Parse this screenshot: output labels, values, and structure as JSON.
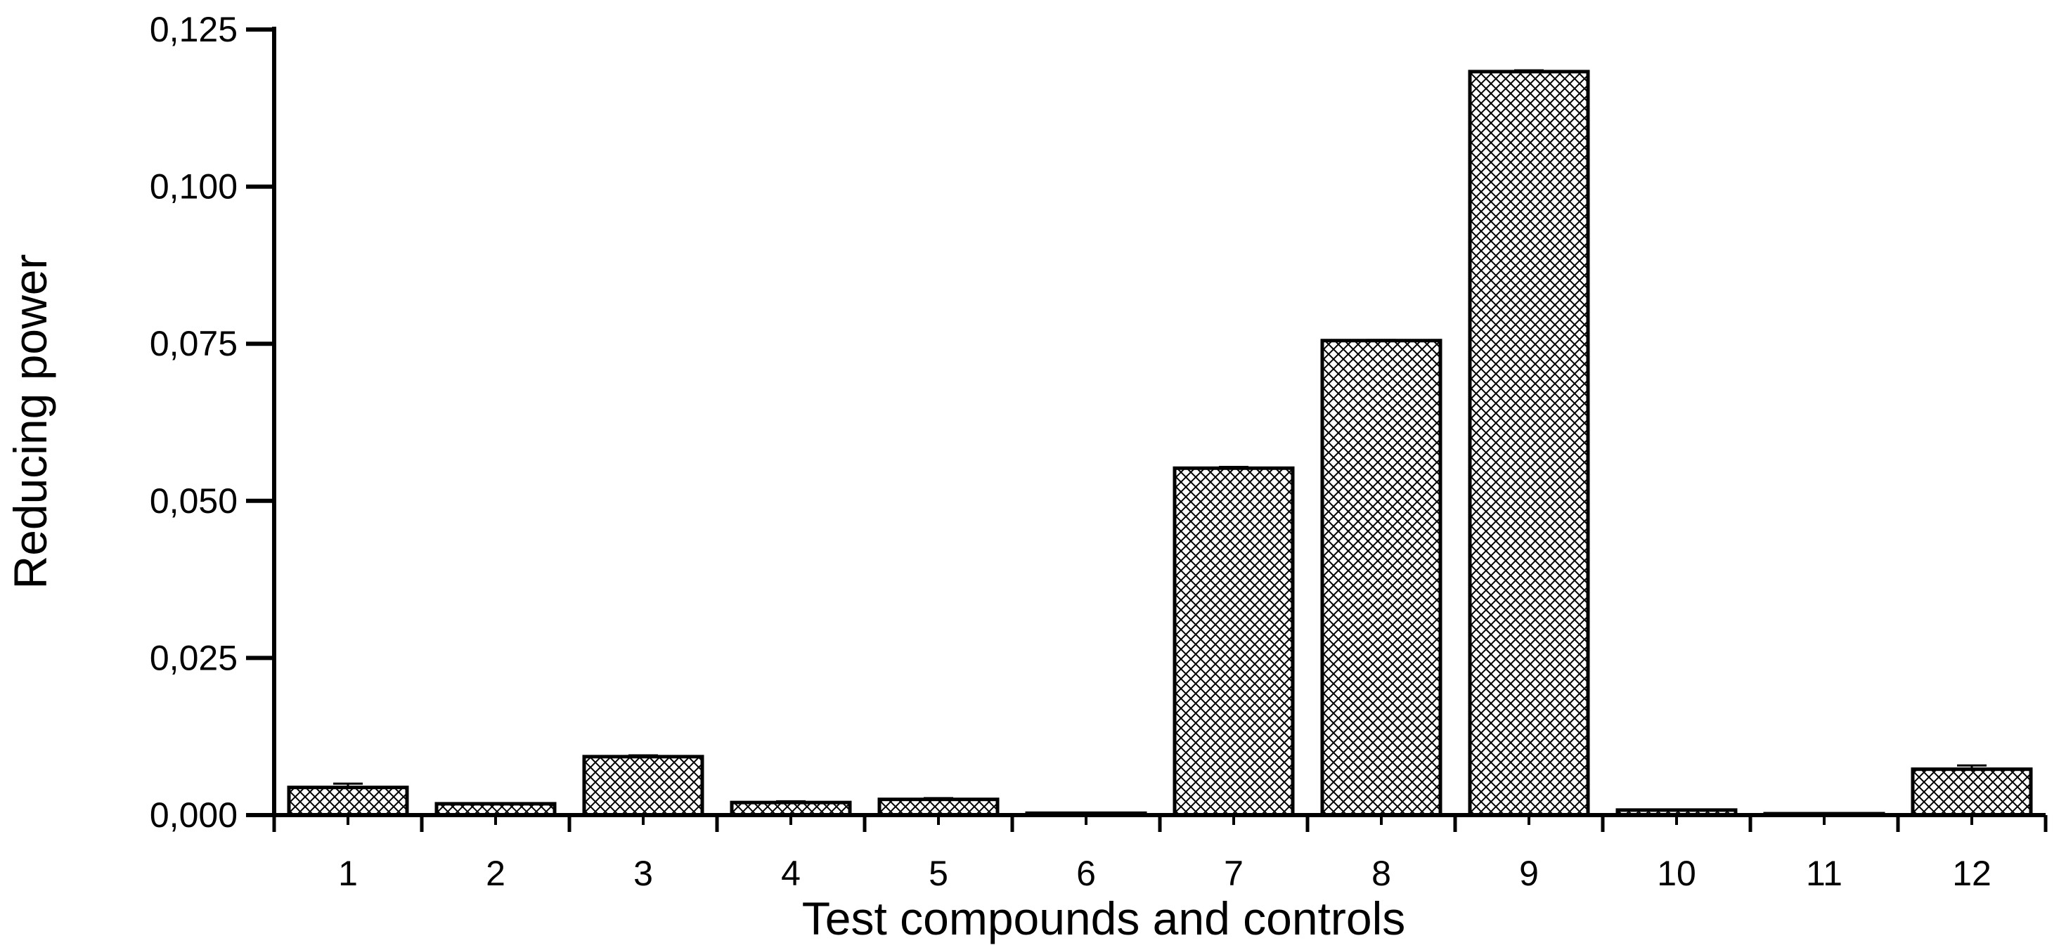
{
  "chart_data": {
    "type": "bar",
    "title": "",
    "xlabel": "Test compounds and controls",
    "ylabel": "Reducing power",
    "ylim": [
      0,
      0.125
    ],
    "yticks": [
      0,
      0.025,
      0.05,
      0.075,
      0.1,
      0.125
    ],
    "ytick_labels": [
      "0,000",
      "0,025",
      "0,050",
      "0,075",
      "0,100",
      "0,125"
    ],
    "categories": [
      "1",
      "2",
      "3",
      "4",
      "5",
      "6",
      "7",
      "8",
      "9",
      "10",
      "11",
      "12"
    ],
    "values": [
      0.0044,
      0.0018,
      0.0093,
      0.002,
      0.0025,
      0.0003,
      0.0552,
      0.0755,
      0.1183,
      0.0008,
      0.0002,
      0.0073
    ],
    "errors": [
      0.0006,
      0.0001,
      0.0002,
      0.0002,
      0.0002,
      0.0,
      0.0002,
      0.0001,
      0.0002,
      0.0001,
      0.0,
      0.0006
    ],
    "bar_fill": "crosshatch",
    "bar_edge_color": "#000000",
    "grid": false,
    "legend": "none"
  }
}
